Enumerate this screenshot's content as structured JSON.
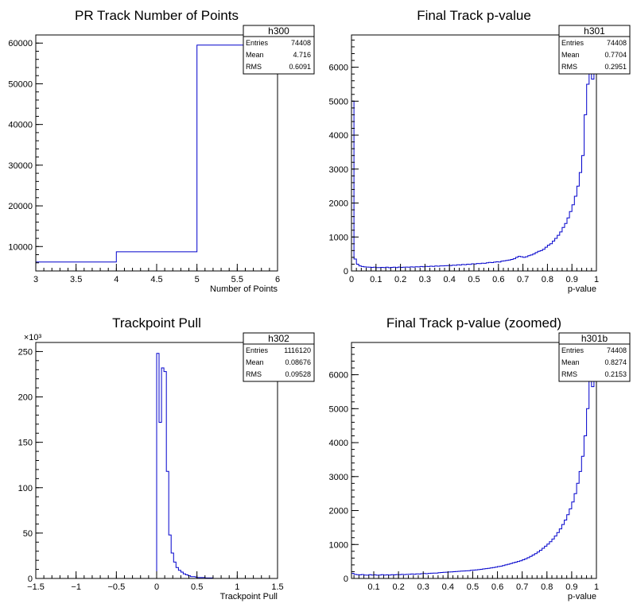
{
  "chart_data": [
    {
      "type": "histogram",
      "title": "PR Track Number of Points",
      "xlabel": "Number of Points",
      "ylabel": "",
      "xlim": [
        3,
        6
      ],
      "ylim": [
        4000,
        62000
      ],
      "x_ticks": [
        "3",
        "3.5",
        "4",
        "4.5",
        "5",
        "5.5",
        "6"
      ],
      "y_ticks": [
        "10000",
        "20000",
        "30000",
        "40000",
        "50000",
        "60000"
      ],
      "y_exponent": "",
      "bin_edges": [
        3,
        4,
        5,
        6
      ],
      "values": [
        6200,
        8700,
        59500
      ],
      "stats": {
        "name": "h300",
        "rows": [
          [
            "Entries",
            "74408"
          ],
          [
            "Mean",
            "4.716"
          ],
          [
            "RMS",
            "0.6091"
          ]
        ]
      }
    },
    {
      "type": "histogram",
      "title": "Final Track p-value",
      "xlabel": "p-value",
      "ylabel": "",
      "xlim": [
        0,
        1
      ],
      "ylim": [
        0,
        6950
      ],
      "x_ticks": [
        "0",
        "0.1",
        "0.2",
        "0.3",
        "0.4",
        "0.5",
        "0.6",
        "0.7",
        "0.8",
        "0.9",
        "1"
      ],
      "y_ticks": [
        "0",
        "1000",
        "2000",
        "3000",
        "4000",
        "5000",
        "6000"
      ],
      "y_exponent": "",
      "bin_edges": [
        0,
        0.01,
        0.02,
        0.03,
        0.04,
        0.05,
        0.06,
        0.07,
        0.08,
        0.09,
        0.1,
        0.11,
        0.12,
        0.13,
        0.14,
        0.15,
        0.16,
        0.17,
        0.18,
        0.19,
        0.2,
        0.21,
        0.22,
        0.23,
        0.24,
        0.25,
        0.26,
        0.27,
        0.28,
        0.29,
        0.3,
        0.31,
        0.32,
        0.33,
        0.34,
        0.35,
        0.36,
        0.37,
        0.38,
        0.39,
        0.4,
        0.41,
        0.42,
        0.43,
        0.44,
        0.45,
        0.46,
        0.47,
        0.48,
        0.49,
        0.5,
        0.51,
        0.52,
        0.53,
        0.54,
        0.55,
        0.56,
        0.57,
        0.58,
        0.59,
        0.6,
        0.61,
        0.62,
        0.63,
        0.64,
        0.65,
        0.66,
        0.67,
        0.68,
        0.69,
        0.7,
        0.71,
        0.72,
        0.73,
        0.74,
        0.75,
        0.76,
        0.77,
        0.78,
        0.79,
        0.8,
        0.81,
        0.82,
        0.83,
        0.84,
        0.85,
        0.86,
        0.87,
        0.88,
        0.89,
        0.9,
        0.91,
        0.92,
        0.93,
        0.94,
        0.95,
        0.96,
        0.97,
        0.98,
        0.99,
        1
      ],
      "values": [
        5000,
        350,
        200,
        150,
        130,
        120,
        115,
        110,
        105,
        110,
        100,
        100,
        105,
        100,
        110,
        95,
        105,
        110,
        100,
        115,
        105,
        110,
        115,
        110,
        120,
        115,
        125,
        120,
        130,
        125,
        135,
        130,
        140,
        135,
        145,
        140,
        150,
        150,
        155,
        160,
        160,
        170,
        165,
        180,
        175,
        190,
        185,
        200,
        195,
        210,
        205,
        220,
        215,
        230,
        225,
        240,
        250,
        245,
        260,
        270,
        265,
        290,
        300,
        310,
        320,
        340,
        360,
        400,
        430,
        420,
        400,
        420,
        450,
        470,
        500,
        540,
        580,
        600,
        640,
        700,
        760,
        800,
        880,
        960,
        1050,
        1150,
        1280,
        1400,
        1560,
        1750,
        1950,
        2200,
        2500,
        2900,
        3400,
        4600,
        5500,
        6000,
        5650,
        6500
      ],
      "stats": {
        "name": "h301",
        "rows": [
          [
            "Entries",
            "74408"
          ],
          [
            "Mean",
            "0.7704"
          ],
          [
            "RMS",
            "0.2951"
          ]
        ]
      }
    },
    {
      "type": "histogram",
      "title": "Trackpoint Pull",
      "xlabel": "Trackpoint Pull",
      "ylabel": "",
      "xlim": [
        -1.5,
        1.5
      ],
      "ylim": [
        0,
        260
      ],
      "x_ticks": [
        "−1.5",
        "−1",
        "−0.5",
        "0",
        "0.5",
        "1",
        "1.5"
      ],
      "y_ticks": [
        "0",
        "50",
        "100",
        "150",
        "200",
        "250"
      ],
      "y_exponent": "×10³",
      "bin_edges": [
        0,
        0.03,
        0.06,
        0.09,
        0.12,
        0.15,
        0.18,
        0.21,
        0.24,
        0.27,
        0.3,
        0.33,
        0.36,
        0.39,
        0.42,
        0.45,
        0.48,
        0.5,
        0.6,
        0.7
      ],
      "values": [
        248,
        172,
        232,
        228,
        118,
        48,
        28,
        18,
        12,
        9,
        7,
        5,
        4,
        3,
        2,
        2,
        1.5,
        1,
        0.5
      ],
      "stats": {
        "name": "h302",
        "rows": [
          [
            "Entries",
            "1116120"
          ],
          [
            "Mean",
            "0.08676"
          ],
          [
            "RMS",
            "0.09528"
          ]
        ]
      }
    },
    {
      "type": "histogram",
      "title": "Final Track p-value (zoomed)",
      "xlabel": "p-value",
      "ylabel": "",
      "xlim": [
        0.01,
        1
      ],
      "ylim": [
        0,
        6950
      ],
      "x_ticks": [
        "0.1",
        "0.2",
        "0.3",
        "0.4",
        "0.5",
        "0.6",
        "0.7",
        "0.8",
        "0.9",
        "1"
      ],
      "y_ticks": [
        "0",
        "1000",
        "2000",
        "3000",
        "4000",
        "5000",
        "6000"
      ],
      "y_exponent": "",
      "bin_edges": [
        0.01,
        0.02,
        0.03,
        0.04,
        0.05,
        0.06,
        0.07,
        0.08,
        0.09,
        0.1,
        0.11,
        0.12,
        0.13,
        0.14,
        0.15,
        0.16,
        0.17,
        0.18,
        0.19,
        0.2,
        0.21,
        0.22,
        0.23,
        0.24,
        0.25,
        0.26,
        0.27,
        0.28,
        0.29,
        0.3,
        0.31,
        0.32,
        0.33,
        0.34,
        0.35,
        0.36,
        0.37,
        0.38,
        0.39,
        0.4,
        0.41,
        0.42,
        0.43,
        0.44,
        0.45,
        0.46,
        0.47,
        0.48,
        0.49,
        0.5,
        0.51,
        0.52,
        0.53,
        0.54,
        0.55,
        0.56,
        0.57,
        0.58,
        0.59,
        0.6,
        0.61,
        0.62,
        0.63,
        0.64,
        0.65,
        0.66,
        0.67,
        0.68,
        0.69,
        0.7,
        0.71,
        0.72,
        0.73,
        0.74,
        0.75,
        0.76,
        0.77,
        0.78,
        0.79,
        0.8,
        0.81,
        0.82,
        0.83,
        0.84,
        0.85,
        0.86,
        0.87,
        0.88,
        0.89,
        0.9,
        0.91,
        0.92,
        0.93,
        0.94,
        0.95,
        0.96,
        0.97,
        0.98,
        0.99,
        1
      ],
      "values": [
        150,
        120,
        110,
        105,
        115,
        100,
        95,
        110,
        100,
        105,
        95,
        100,
        110,
        100,
        105,
        100,
        110,
        105,
        115,
        110,
        120,
        115,
        120,
        125,
        130,
        125,
        135,
        130,
        140,
        145,
        140,
        150,
        155,
        160,
        160,
        170,
        175,
        180,
        185,
        190,
        195,
        200,
        205,
        210,
        215,
        220,
        225,
        230,
        240,
        245,
        250,
        260,
        270,
        280,
        290,
        300,
        310,
        320,
        335,
        350,
        360,
        380,
        400,
        420,
        440,
        460,
        480,
        500,
        520,
        550,
        580,
        610,
        650,
        690,
        730,
        780,
        830,
        890,
        950,
        1010,
        1080,
        1160,
        1250,
        1350,
        1460,
        1590,
        1720,
        1880,
        2050,
        2250,
        2500,
        2800,
        3150,
        3600,
        4200,
        5000,
        6000,
        5650,
        6500
      ],
      "stats": {
        "name": "h301b",
        "rows": [
          [
            "Entries",
            "74408"
          ],
          [
            "Mean",
            "0.8274"
          ],
          [
            "RMS",
            "0.2153"
          ]
        ]
      }
    }
  ],
  "style": {
    "line_color": "#0000cc",
    "axis_color": "#000000",
    "background": "#ffffff"
  }
}
